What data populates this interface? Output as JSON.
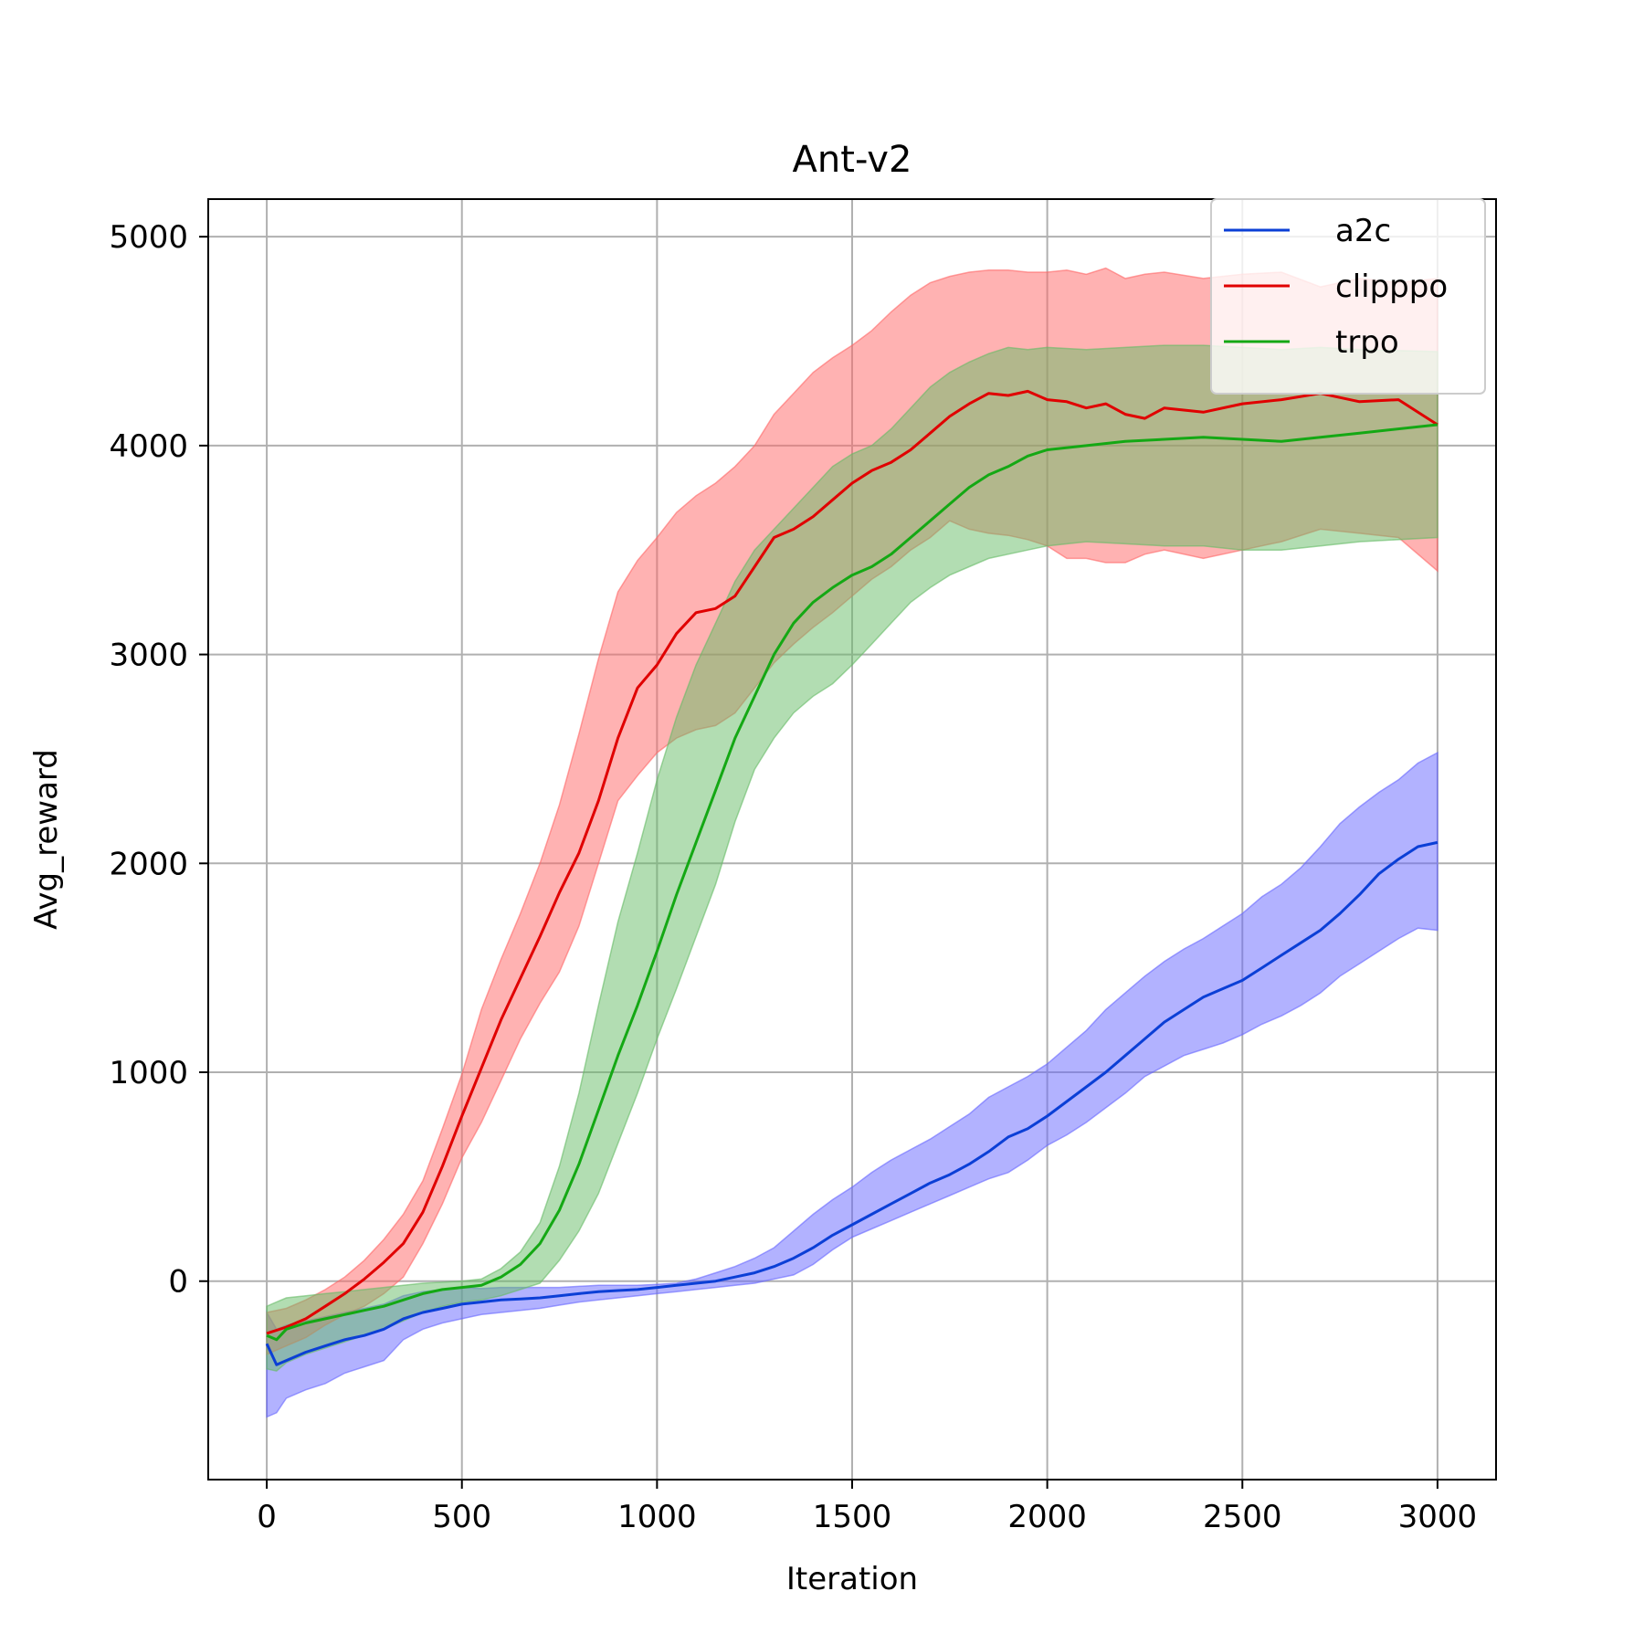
{
  "chart_data": {
    "type": "line",
    "title": "Ant-v2",
    "xlabel": "Iteration",
    "ylabel": "Avg_reward",
    "xlim": [
      -150,
      3150
    ],
    "ylim": [
      -950,
      5180
    ],
    "grid": true,
    "legend_position": "top-right",
    "x_ticks": [
      0,
      500,
      1000,
      1500,
      2000,
      2500,
      3000
    ],
    "x_tick_labels": [
      "0",
      "500",
      "1000",
      "1500",
      "2000",
      "2500",
      "3000"
    ],
    "y_ticks": [
      0,
      1000,
      2000,
      3000,
      4000,
      5000
    ],
    "y_tick_labels": [
      "0",
      "1000",
      "2000",
      "3000",
      "4000",
      "5000"
    ],
    "x": [
      0,
      25,
      50,
      100,
      150,
      200,
      250,
      300,
      350,
      400,
      450,
      500,
      550,
      600,
      650,
      700,
      750,
      800,
      850,
      900,
      950,
      1000,
      1050,
      1100,
      1150,
      1200,
      1250,
      1300,
      1350,
      1400,
      1450,
      1500,
      1550,
      1600,
      1650,
      1700,
      1750,
      1800,
      1850,
      1900,
      1950,
      2000,
      2050,
      2100,
      2150,
      2200,
      2250,
      2300,
      2350,
      2400,
      2450,
      2500,
      2550,
      2600,
      2650,
      2700,
      2750,
      2800,
      2850,
      2900,
      2950,
      3000
    ],
    "series": [
      {
        "name": "a2c",
        "color": "#0b3fd6",
        "band_color": "#6666ff",
        "mean": [
          -300,
          -400,
          -380,
          -340,
          -310,
          -280,
          -260,
          -230,
          -180,
          -150,
          -130,
          -110,
          -100,
          -90,
          -85,
          -80,
          -70,
          -60,
          -50,
          -45,
          -40,
          -30,
          -20,
          -10,
          0,
          20,
          40,
          70,
          110,
          160,
          220,
          270,
          320,
          370,
          420,
          470,
          510,
          560,
          620,
          690,
          730,
          790,
          860,
          930,
          1000,
          1080,
          1160,
          1240,
          1300,
          1360,
          1400,
          1440,
          1500,
          1560,
          1620,
          1680,
          1760,
          1850,
          1950,
          2020,
          2080,
          2100
        ],
        "upper": [
          -150,
          -230,
          -210,
          -190,
          -170,
          -150,
          -130,
          -110,
          -70,
          -50,
          -40,
          -30,
          -35,
          -30,
          -30,
          -30,
          -30,
          -25,
          -20,
          -20,
          -20,
          -15,
          -10,
          10,
          40,
          70,
          110,
          160,
          240,
          320,
          390,
          450,
          520,
          580,
          630,
          680,
          740,
          800,
          880,
          930,
          980,
          1040,
          1120,
          1200,
          1300,
          1380,
          1460,
          1530,
          1590,
          1640,
          1700,
          1760,
          1840,
          1900,
          1980,
          2080,
          2190,
          2270,
          2340,
          2400,
          2480,
          2530
        ],
        "lower": [
          -650,
          -630,
          -560,
          -520,
          -490,
          -440,
          -410,
          -380,
          -280,
          -230,
          -200,
          -180,
          -160,
          -150,
          -140,
          -130,
          -115,
          -100,
          -90,
          -80,
          -70,
          -60,
          -50,
          -40,
          -30,
          -20,
          -10,
          10,
          30,
          80,
          150,
          210,
          250,
          290,
          330,
          370,
          410,
          450,
          490,
          520,
          580,
          650,
          700,
          760,
          830,
          900,
          980,
          1030,
          1080,
          1110,
          1140,
          1180,
          1230,
          1270,
          1320,
          1380,
          1460,
          1520,
          1580,
          1640,
          1690,
          1680
        ]
      },
      {
        "name": "clipppo",
        "color": "#e00000",
        "band_color": "#ff6666",
        "mean": [
          -250,
          -220,
          -180,
          -120,
          -60,
          10,
          90,
          180,
          330,
          550,
          790,
          1020,
          1250,
          1450,
          1650,
          1860,
          2050,
          2300,
          2600,
          2840,
          2950,
          3100,
          3200,
          3220,
          3280,
          3420,
          3560,
          3600,
          3660,
          3740,
          3820,
          3880,
          3920,
          3980,
          4060,
          4140,
          4200,
          4250,
          4240,
          4260,
          4220,
          4210,
          4180,
          4200,
          4150,
          4130,
          4180,
          4160,
          4200,
          4220,
          4250,
          4210,
          4220,
          4100
        ],
        "upper": [
          -150,
          -130,
          -90,
          -40,
          20,
          100,
          200,
          320,
          480,
          730,
          990,
          1300,
          1540,
          1760,
          2000,
          2280,
          2620,
          2980,
          3300,
          3450,
          3560,
          3680,
          3760,
          3820,
          3900,
          4000,
          4150,
          4250,
          4350,
          4420,
          4480,
          4550,
          4640,
          4720,
          4780,
          4810,
          4830,
          4840,
          4840,
          4830,
          4830,
          4840,
          4820,
          4850,
          4800,
          4820,
          4830,
          4800,
          4820,
          4830,
          4760,
          4800,
          4780,
          4800
        ],
        "lower": [
          -350,
          -310,
          -270,
          -210,
          -160,
          -120,
          -60,
          20,
          180,
          370,
          590,
          760,
          960,
          1160,
          1330,
          1480,
          1700,
          2000,
          2300,
          2420,
          2530,
          2600,
          2640,
          2660,
          2720,
          2840,
          2960,
          3050,
          3130,
          3200,
          3280,
          3360,
          3420,
          3500,
          3560,
          3640,
          3600,
          3580,
          3570,
          3550,
          3520,
          3460,
          3460,
          3440,
          3440,
          3480,
          3500,
          3460,
          3500,
          3540,
          3600,
          3580,
          3560,
          3400
        ],
        "x": [
          0,
          50,
          100,
          150,
          200,
          250,
          300,
          350,
          400,
          450,
          500,
          550,
          600,
          650,
          700,
          750,
          800,
          850,
          900,
          950,
          1000,
          1050,
          1100,
          1150,
          1200,
          1250,
          1300,
          1350,
          1400,
          1450,
          1500,
          1550,
          1600,
          1650,
          1700,
          1750,
          1800,
          1850,
          1900,
          1950,
          2000,
          2050,
          2100,
          2150,
          2200,
          2250,
          2300,
          2400,
          2500,
          2600,
          2700,
          2800,
          2900,
          3000
        ]
      },
      {
        "name": "trpo",
        "color": "#14a814",
        "band_color": "#66bb66",
        "mean": [
          -260,
          -280,
          -230,
          -200,
          -180,
          -160,
          -140,
          -120,
          -90,
          -60,
          -40,
          -30,
          -20,
          20,
          80,
          180,
          340,
          560,
          820,
          1080,
          1320,
          1580,
          1850,
          2100,
          2350,
          2600,
          2800,
          3000,
          3150,
          3250,
          3320,
          3380,
          3420,
          3480,
          3560,
          3640,
          3720,
          3800,
          3860,
          3900,
          3950,
          3980,
          4000,
          4020,
          4030,
          4040,
          4030,
          4020,
          4040,
          4060,
          4100
        ],
        "upper": [
          -120,
          -100,
          -80,
          -70,
          -60,
          -50,
          -40,
          -30,
          -20,
          -10,
          -5,
          0,
          10,
          60,
          140,
          280,
          550,
          900,
          1320,
          1720,
          2050,
          2400,
          2700,
          2950,
          3150,
          3350,
          3500,
          3600,
          3700,
          3800,
          3900,
          3960,
          4000,
          4080,
          4180,
          4280,
          4350,
          4400,
          4440,
          4470,
          4460,
          4470,
          4460,
          4470,
          4480,
          4480,
          4470,
          4460,
          4470,
          4460,
          4450
        ],
        "lower": [
          -420,
          -430,
          -390,
          -350,
          -320,
          -290,
          -260,
          -230,
          -190,
          -150,
          -120,
          -100,
          -90,
          -70,
          -40,
          -10,
          100,
          240,
          420,
          660,
          900,
          1160,
          1400,
          1650,
          1900,
          2200,
          2450,
          2600,
          2720,
          2800,
          2860,
          2950,
          3050,
          3150,
          3250,
          3320,
          3380,
          3420,
          3460,
          3480,
          3500,
          3520,
          3540,
          3530,
          3520,
          3520,
          3500,
          3500,
          3520,
          3540,
          3560
        ],
        "x": [
          0,
          25,
          50,
          100,
          150,
          200,
          250,
          300,
          350,
          400,
          450,
          500,
          550,
          600,
          650,
          700,
          750,
          800,
          850,
          900,
          950,
          1000,
          1050,
          1100,
          1150,
          1200,
          1250,
          1300,
          1350,
          1400,
          1450,
          1500,
          1550,
          1600,
          1650,
          1700,
          1750,
          1800,
          1850,
          1900,
          1950,
          2000,
          2100,
          2200,
          2300,
          2400,
          2500,
          2600,
          2700,
          2800,
          3000
        ]
      }
    ]
  }
}
